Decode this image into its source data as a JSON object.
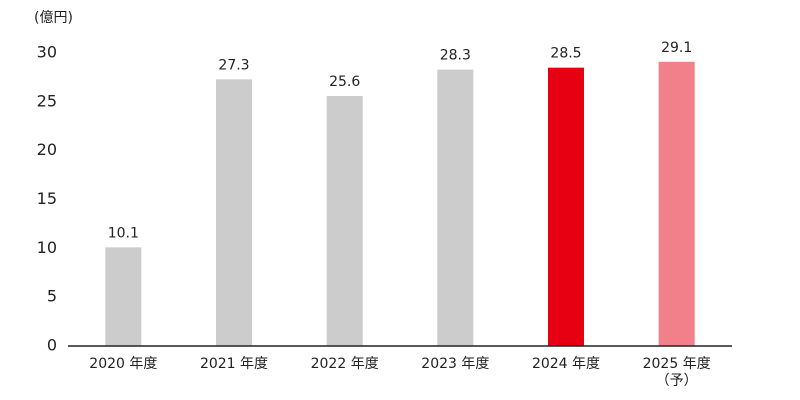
{
  "chart_data": {
    "type": "bar",
    "y_label": "(億円)",
    "categories": [
      "2020 年度",
      "2021 年度",
      "2022 年度",
      "2023 年度",
      "2024 年度",
      "2025 年度\n（予）"
    ],
    "values": [
      10.1,
      27.3,
      25.6,
      28.3,
      28.5,
      29.1
    ],
    "colors": [
      "#cccccc",
      "#cccccc",
      "#cccccc",
      "#cccccc",
      "#e60012",
      "#f2808a"
    ],
    "ylim": [
      0,
      30
    ],
    "yticks": [
      0,
      5,
      10,
      15,
      20,
      25,
      30
    ],
    "grid": false
  }
}
